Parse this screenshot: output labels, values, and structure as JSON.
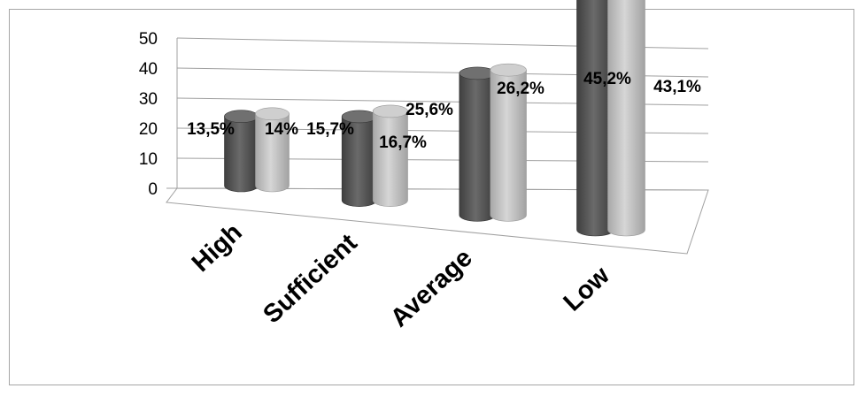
{
  "chart_data": {
    "type": "bar",
    "categories": [
      "High",
      "Sufficient",
      "Average",
      "Low"
    ],
    "series": [
      {
        "values": [
          13.5,
          15.7,
          25.6,
          45.2
        ],
        "labels": [
          "13,5%",
          "15,7%",
          "25,6%",
          "45,2%"
        ],
        "color": "#5a5a5a"
      },
      {
        "values": [
          14,
          16.7,
          26.2,
          43.1
        ],
        "labels": [
          "14%",
          "16,7%",
          "26,2%",
          "43,1%"
        ],
        "color": "#bdbdbd"
      }
    ],
    "yticks": [
      "0",
      "10",
      "20",
      "30",
      "40",
      "50"
    ],
    "ylim": [
      0,
      50
    ],
    "grid": true,
    "style": "3d-cylinder"
  }
}
